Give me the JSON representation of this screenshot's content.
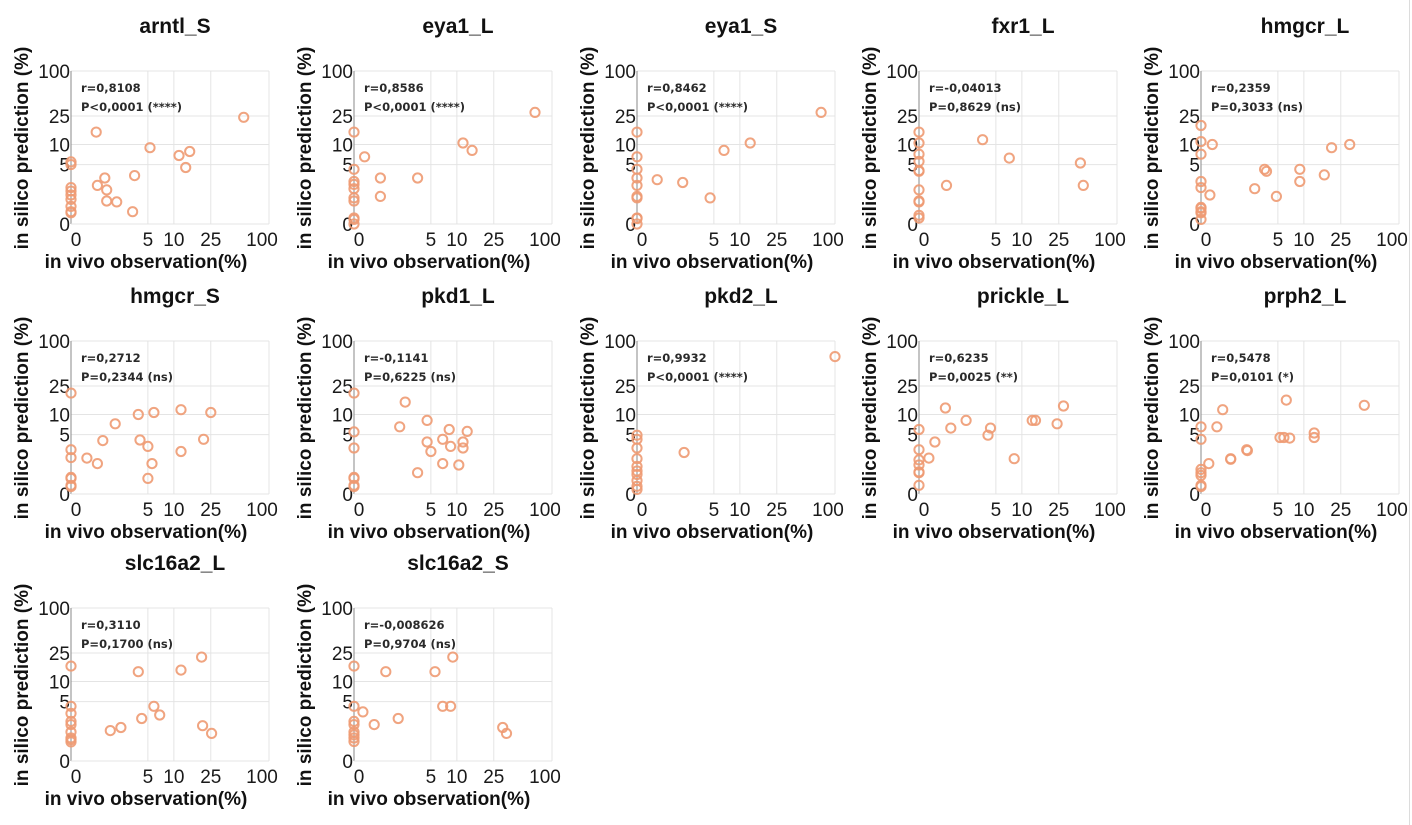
{
  "figure": {
    "xlabel": "in vivo observation(%)",
    "ylabel": "in silico prediction (%)",
    "marker_color": "#ee9a72"
  },
  "chart_data": [
    {
      "type": "scatter",
      "title": "arntl_S",
      "xlabel": "in vivo observation(%)",
      "ylabel": "in silico prediction (%)",
      "xticks": [
        "0",
        "5",
        "10",
        "25",
        "100"
      ],
      "yticks": [
        "0",
        "5",
        "10",
        "25",
        "100"
      ],
      "xlim": [
        0,
        100
      ],
      "ylim": [
        0,
        100
      ],
      "scale": "log10(v+1)",
      "grid": true,
      "stats": {
        "r": "r=0,8108",
        "p": "P<0,0001 (****)"
      },
      "points": [
        [
          0,
          5.5
        ],
        [
          0,
          5.0
        ],
        [
          0,
          2.0
        ],
        [
          0,
          1.7
        ],
        [
          0,
          1.4
        ],
        [
          0,
          1.1
        ],
        [
          0,
          0.7
        ],
        [
          0,
          0.45
        ],
        [
          0,
          0.4
        ],
        [
          0.8,
          15
        ],
        [
          0.85,
          2.2
        ],
        [
          1.2,
          3.0
        ],
        [
          1.3,
          1.8
        ],
        [
          1.3,
          1.0
        ],
        [
          1.9,
          0.95
        ],
        [
          3.2,
          0.45
        ],
        [
          3.4,
          3.3
        ],
        [
          5.3,
          9.0
        ],
        [
          11.4,
          6.9
        ],
        [
          14.9,
          7.9
        ],
        [
          13.5,
          4.5
        ],
        [
          55,
          24
        ]
      ]
    },
    {
      "type": "scatter",
      "title": "eya1_L",
      "xlabel": "in vivo observation(%)",
      "ylabel": "in silico prediction (%)",
      "xticks": [
        "0",
        "5",
        "10",
        "25",
        "100"
      ],
      "yticks": [
        "0",
        "5",
        "10",
        "25",
        "100"
      ],
      "xlim": [
        0,
        100
      ],
      "ylim": [
        0,
        100
      ],
      "scale": "log10(v+1)",
      "grid": true,
      "stats": {
        "r": "r=0,8586",
        "p": "P<0,0001 (****)"
      },
      "points": [
        [
          0,
          15
        ],
        [
          0,
          4.2
        ],
        [
          0,
          2.6
        ],
        [
          0,
          2.3
        ],
        [
          0,
          1.9
        ],
        [
          0,
          1.2
        ],
        [
          0,
          1.0
        ],
        [
          0,
          0.2
        ],
        [
          0,
          0.15
        ],
        [
          0,
          0
        ],
        [
          0.28,
          6.6
        ],
        [
          0.85,
          3.0
        ],
        [
          0.85,
          1.3
        ],
        [
          3.4,
          3.0
        ],
        [
          11.7,
          10.5
        ],
        [
          14.7,
          8.2
        ],
        [
          67,
          28
        ]
      ]
    },
    {
      "type": "scatter",
      "title": "eya1_S",
      "xlabel": "in vivo observation(%)",
      "ylabel": "in silico prediction (%)",
      "xticks": [
        "0",
        "5",
        "10",
        "25",
        "100"
      ],
      "yticks": [
        "0",
        "5",
        "10",
        "25",
        "100"
      ],
      "xlim": [
        0,
        100
      ],
      "ylim": [
        0,
        100
      ],
      "scale": "log10(v+1)",
      "grid": true,
      "stats": {
        "r": "r=0,8462",
        "p": "P<0,0001 (****)"
      },
      "points": [
        [
          0,
          15
        ],
        [
          0,
          6.6
        ],
        [
          0,
          4.2
        ],
        [
          0,
          3.0
        ],
        [
          0,
          2.2
        ],
        [
          0,
          1.3
        ],
        [
          0,
          1.2
        ],
        [
          0,
          0.2
        ],
        [
          0,
          0.18
        ],
        [
          0,
          0
        ],
        [
          0.6,
          2.8
        ],
        [
          1.9,
          2.5
        ],
        [
          4.5,
          1.2
        ],
        [
          6.6,
          8.2
        ],
        [
          13,
          10.5
        ],
        [
          72,
          28
        ]
      ]
    },
    {
      "type": "scatter",
      "title": "fxr1_L",
      "xlabel": "in vivo observation(%)",
      "ylabel": "in silico prediction (%)",
      "xticks": [
        "0",
        "5",
        "10",
        "25",
        "100"
      ],
      "yticks": [
        "0",
        "5",
        "10",
        "25",
        "100"
      ],
      "xlim": [
        0,
        100
      ],
      "ylim": [
        0,
        100
      ],
      "scale": "log10(v+1)",
      "grid": true,
      "stats": {
        "r": "r=-0,04013",
        "p": "P=0,8629 (ns)"
      },
      "points": [
        [
          0,
          15
        ],
        [
          0,
          10.5
        ],
        [
          0,
          7.2
        ],
        [
          0,
          5.6
        ],
        [
          0,
          4.0
        ],
        [
          0,
          3.9
        ],
        [
          0,
          1.8
        ],
        [
          0,
          1.0
        ],
        [
          0,
          0.95
        ],
        [
          0,
          0.3
        ],
        [
          0,
          0.2
        ],
        [
          0.9,
          2.2
        ],
        [
          3.4,
          11.7
        ],
        [
          7.2,
          6.3
        ],
        [
          42,
          5.3
        ],
        [
          45,
          2.2
        ]
      ]
    },
    {
      "type": "scatter",
      "title": "hmgcr_L",
      "xlabel": "in vivo observation(%)",
      "ylabel": "in silico prediction (%)",
      "xticks": [
        "0",
        "5",
        "10",
        "25",
        "100"
      ],
      "yticks": [
        "0",
        "5",
        "10",
        "25",
        "100"
      ],
      "xlim": [
        0,
        100
      ],
      "ylim": [
        0,
        100
      ],
      "scale": "log10(v+1)",
      "grid": true,
      "stats": {
        "r": "r=0,2359",
        "p": "P=0,3033 (ns)"
      },
      "points": [
        [
          0,
          18.5
        ],
        [
          0,
          11
        ],
        [
          0,
          7.2
        ],
        [
          0,
          2.6
        ],
        [
          0,
          2.0
        ],
        [
          0,
          0.65
        ],
        [
          0,
          0.6
        ],
        [
          0,
          0.45
        ],
        [
          0,
          0.4
        ],
        [
          0,
          0.15
        ],
        [
          0.3,
          10
        ],
        [
          0.23,
          1.4
        ],
        [
          2.5,
          1.9
        ],
        [
          3.4,
          4.2
        ],
        [
          3.6,
          3.9
        ],
        [
          4.8,
          1.3
        ],
        [
          9,
          4.2
        ],
        [
          9,
          2.6
        ],
        [
          16.7,
          3.4
        ],
        [
          20,
          9
        ],
        [
          31,
          10
        ]
      ]
    },
    {
      "type": "scatter",
      "title": "hmgcr_S",
      "xlabel": "in vivo observation(%)",
      "ylabel": "in silico prediction (%)",
      "xticks": [
        "0",
        "5",
        "10",
        "25",
        "100"
      ],
      "yticks": [
        "0",
        "5",
        "10",
        "25",
        "100"
      ],
      "xlim": [
        0,
        100
      ],
      "ylim": [
        0,
        100
      ],
      "scale": "log10(v+1)",
      "grid": true,
      "stats": {
        "r": "r=0,2712",
        "p": "P=0,2344 (ns)"
      },
      "points": [
        [
          0,
          20
        ],
        [
          0,
          2.8
        ],
        [
          0,
          2.0
        ],
        [
          0,
          0.65
        ],
        [
          0,
          0.6
        ],
        [
          0,
          0.3
        ],
        [
          0,
          0.25
        ],
        [
          0.45,
          1.95
        ],
        [
          0.85,
          1.5
        ],
        [
          1.1,
          4.0
        ],
        [
          1.8,
          7.3
        ],
        [
          3.8,
          10
        ],
        [
          4.0,
          4.1
        ],
        [
          5.0,
          3.2
        ],
        [
          5.9,
          10.7
        ],
        [
          5.6,
          1.5
        ],
        [
          5.0,
          0.6
        ],
        [
          12,
          2.6
        ],
        [
          12,
          11.7
        ],
        [
          21,
          4.2
        ],
        [
          25,
          10.7
        ]
      ]
    },
    {
      "type": "scatter",
      "title": "pkd1_L",
      "xlabel": "in vivo observation(%)",
      "ylabel": "in silico prediction (%)",
      "xticks": [
        "0",
        "5",
        "10",
        "25",
        "100"
      ],
      "yticks": [
        "0",
        "5",
        "10",
        "25",
        "100"
      ],
      "xlim": [
        0,
        100
      ],
      "ylim": [
        0,
        100
      ],
      "scale": "log10(v+1)",
      "grid": true,
      "stats": {
        "r": "r=-0,1141",
        "p": "P=0,6225 (ns)"
      },
      "points": [
        [
          0,
          20
        ],
        [
          0,
          5.5
        ],
        [
          0,
          3.0
        ],
        [
          0,
          0.65
        ],
        [
          0,
          0.6
        ],
        [
          0,
          0.3
        ],
        [
          0,
          0.25
        ],
        [
          1.9,
          6.6
        ],
        [
          2.3,
          15
        ],
        [
          3.4,
          0.9
        ],
        [
          4.5,
          8.2
        ],
        [
          4.5,
          3.8
        ],
        [
          5.0,
          2.6
        ],
        [
          6.9,
          4.2
        ],
        [
          6.9,
          1.5
        ],
        [
          8.2,
          6.0
        ],
        [
          8.5,
          3.2
        ],
        [
          10.5,
          1.4
        ],
        [
          11.7,
          3.8
        ],
        [
          11.7,
          3.0
        ],
        [
          13,
          5.6
        ]
      ]
    },
    {
      "type": "scatter",
      "title": "pkd2_L",
      "xlabel": "in vivo observation(%)",
      "ylabel": "in silico prediction (%)",
      "xticks": [
        "0",
        "5",
        "10",
        "25",
        "100"
      ],
      "yticks": [
        "0",
        "5",
        "10",
        "25",
        "100"
      ],
      "xlim": [
        0,
        100
      ],
      "ylim": [
        0,
        100
      ],
      "scale": "log10(v+1)",
      "grid": true,
      "stats": {
        "r": "r=0,9932",
        "p": "P<0,0001 (****)"
      },
      "points": [
        [
          0,
          4.9
        ],
        [
          0,
          4.2
        ],
        [
          0,
          3.0
        ],
        [
          0,
          1.9
        ],
        [
          0,
          1.3
        ],
        [
          0,
          1.0
        ],
        [
          0,
          0.8
        ],
        [
          0,
          0.5
        ],
        [
          0,
          0.26
        ],
        [
          0,
          0.15
        ],
        [
          2.0,
          2.5
        ],
        [
          100,
          62
        ]
      ]
    },
    {
      "type": "scatter",
      "title": "prickle_L",
      "xlabel": "in vivo observation(%)",
      "ylabel": "in silico prediction (%)",
      "xticks": [
        "0",
        "5",
        "10",
        "25",
        "100"
      ],
      "yticks": [
        "0",
        "5",
        "10",
        "25",
        "100"
      ],
      "xlim": [
        0,
        100
      ],
      "ylim": [
        0,
        100
      ],
      "scale": "log10(v+1)",
      "grid": true,
      "stats": {
        "r": "r=0,6235",
        "p": "P=0,0025 (**)"
      },
      "points": [
        [
          0,
          6.0
        ],
        [
          0,
          2.8
        ],
        [
          0,
          1.8
        ],
        [
          0,
          1.4
        ],
        [
          0,
          0.95
        ],
        [
          0,
          0.9
        ],
        [
          0,
          0.3
        ],
        [
          0.26,
          1.95
        ],
        [
          0.45,
          3.8
        ],
        [
          0.85,
          12.4
        ],
        [
          1.1,
          6.3
        ],
        [
          2.0,
          8.2
        ],
        [
          4.0,
          4.9
        ],
        [
          4.3,
          6.3
        ],
        [
          8.2,
          1.9
        ],
        [
          13,
          8.2
        ],
        [
          14.1,
          8.2
        ],
        [
          24,
          7.3
        ],
        [
          28,
          13.2
        ]
      ]
    },
    {
      "type": "scatter",
      "title": "prph2_L",
      "xlabel": "in vivo observation(%)",
      "ylabel": "in silico prediction (%)",
      "xticks": [
        "0",
        "5",
        "10",
        "25",
        "100"
      ],
      "yticks": [
        "0",
        "5",
        "10",
        "25",
        "100"
      ],
      "xlim": [
        0,
        100
      ],
      "ylim": [
        0,
        100
      ],
      "scale": "log10(v+1)",
      "grid": true,
      "stats": {
        "r": "r=0,5478",
        "p": "P=0,0101 (*)"
      },
      "points": [
        [
          0,
          6.6
        ],
        [
          0,
          4.2
        ],
        [
          0,
          1.1
        ],
        [
          0,
          0.9
        ],
        [
          0,
          0.75
        ],
        [
          0,
          0.3
        ],
        [
          0,
          0.25
        ],
        [
          0.2,
          1.5
        ],
        [
          0.45,
          6.6
        ],
        [
          0.66,
          11.7
        ],
        [
          1.0,
          1.9
        ],
        [
          1.0,
          1.85
        ],
        [
          1.9,
          2.8
        ],
        [
          1.95,
          2.7
        ],
        [
          5.3,
          4.5
        ],
        [
          5.9,
          4.5
        ],
        [
          6.9,
          4.4
        ],
        [
          6.3,
          16
        ],
        [
          13,
          5.3
        ],
        [
          13,
          4.5
        ],
        [
          44,
          13.5
        ]
      ]
    },
    {
      "type": "scatter",
      "title": "slc16a2_L",
      "xlabel": "in vivo observation(%)",
      "ylabel": "in silico prediction (%)",
      "xticks": [
        "0",
        "5",
        "10",
        "25",
        "100"
      ],
      "yticks": [
        "0",
        "5",
        "10",
        "25",
        "100"
      ],
      "xlim": [
        0,
        100
      ],
      "ylim": [
        0,
        100
      ],
      "scale": "log10(v+1)",
      "grid": true,
      "stats": {
        "r": "r=0,3110",
        "p": "P=0,1700 (ns)"
      },
      "points": [
        [
          0,
          16.5
        ],
        [
          0,
          4.2
        ],
        [
          0,
          3.2
        ],
        [
          0,
          2.3
        ],
        [
          0,
          2.0
        ],
        [
          0,
          1.4
        ],
        [
          0,
          1.0
        ],
        [
          0,
          0.9
        ],
        [
          0,
          0.78
        ],
        [
          1.5,
          1.5
        ],
        [
          2.2,
          1.75
        ],
        [
          3.8,
          13.8
        ],
        [
          4.2,
          2.6
        ],
        [
          5.9,
          4.2
        ],
        [
          6.9,
          3.0
        ],
        [
          12,
          14.5
        ],
        [
          20,
          22
        ],
        [
          20.5,
          1.9
        ],
        [
          25.5,
          1.3
        ]
      ]
    },
    {
      "type": "scatter",
      "title": "slc16a2_S",
      "xlabel": "in vivo observation(%)",
      "ylabel": "in silico prediction (%)",
      "xticks": [
        "0",
        "5",
        "10",
        "25",
        "100"
      ],
      "yticks": [
        "0",
        "5",
        "10",
        "25",
        "100"
      ],
      "xlim": [
        0,
        100
      ],
      "ylim": [
        0,
        100
      ],
      "scale": "log10(v+1)",
      "grid": true,
      "stats": {
        "r": "r=-0,008626",
        "p": "P=0,9704 (ns)"
      },
      "points": [
        [
          0,
          16.5
        ],
        [
          0,
          4.2
        ],
        [
          0,
          2.3
        ],
        [
          0,
          2.0
        ],
        [
          0,
          1.4
        ],
        [
          0,
          1.2
        ],
        [
          0,
          1.0
        ],
        [
          0,
          0.8
        ],
        [
          0.23,
          3.4
        ],
        [
          0.6,
          2.0
        ],
        [
          1.1,
          13.8
        ],
        [
          1.8,
          2.6
        ],
        [
          5.6,
          13.8
        ],
        [
          6.9,
          4.2
        ],
        [
          8.5,
          4.2
        ],
        [
          9,
          22
        ],
        [
          31,
          1.75
        ],
        [
          34,
          1.3
        ]
      ]
    }
  ]
}
